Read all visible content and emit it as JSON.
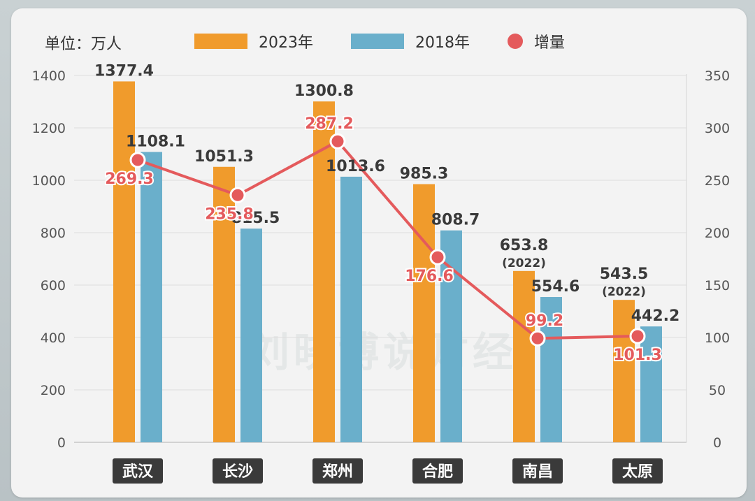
{
  "unit_label": "单位：万人",
  "watermark": "刘晓博说财经",
  "colors": {
    "bar_2023": "#f09b2c",
    "bar_2018": "#6aafcb",
    "line": "#e45a5c"
  },
  "chart_data": {
    "type": "bar",
    "categories": [
      "武汉",
      "长沙",
      "郑州",
      "合肥",
      "南昌",
      "太原"
    ],
    "series": [
      {
        "name": "2023年",
        "values": [
          1377.4,
          1051.3,
          1300.8,
          985.3,
          653.8,
          543.5
        ],
        "labels": [
          "1377.4",
          "1051.3",
          "1300.8",
          "985.3",
          "653.8",
          "543.5"
        ],
        "notes": [
          "",
          "",
          "",
          "",
          "(2022)",
          "(2022)"
        ]
      },
      {
        "name": "2018年",
        "values": [
          1108.1,
          815.5,
          1013.6,
          808.7,
          554.6,
          442.2
        ],
        "labels": [
          "1108.1",
          "815.5",
          "1013.6",
          "808.7",
          "554.6",
          "442.2"
        ]
      },
      {
        "name": "增量",
        "type": "line",
        "axis": "right",
        "values": [
          269.3,
          235.8,
          287.2,
          176.6,
          99.2,
          101.3
        ],
        "labels": [
          "269.3",
          "235.8",
          "287.2",
          "176.6",
          "99.2",
          "101.3"
        ]
      }
    ],
    "y_left": {
      "range": [
        0,
        1400
      ],
      "ticks": [
        "0",
        "200",
        "400",
        "600",
        "800",
        "1000",
        "1200",
        "1400"
      ]
    },
    "y_right": {
      "range": [
        0,
        350
      ],
      "ticks": [
        "0",
        "50",
        "100",
        "150",
        "200",
        "250",
        "300",
        "350"
      ]
    },
    "grid": true,
    "legend": "top"
  }
}
